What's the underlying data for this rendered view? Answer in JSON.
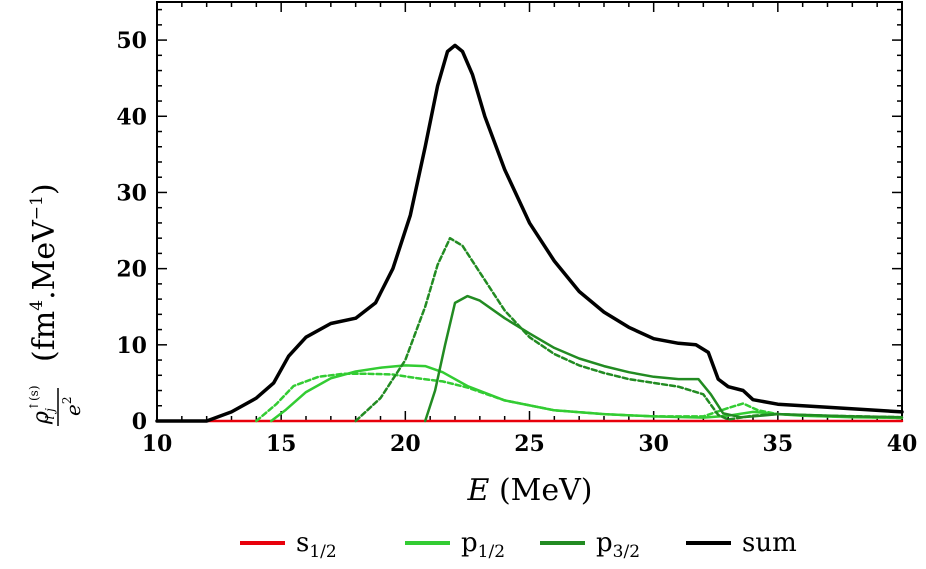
{
  "chart_data": {
    "type": "line",
    "xlabel_var": "E",
    "xlabel_unit": "(MeV)",
    "ylabel": {
      "symbol": "ρ",
      "superscript": "↑(s)",
      "subscript": "l j",
      "denominator": "e",
      "denominator_power": "2",
      "unit_open": "(fm",
      "unit_power": "4",
      "unit_mid": ".MeV",
      "unit_neg_power": "−1",
      "unit_close": ")"
    },
    "xlim": [
      10,
      40
    ],
    "ylim": [
      0,
      55
    ],
    "xticks": [
      "10",
      "15",
      "20",
      "25",
      "30",
      "35",
      "40"
    ],
    "yticks": [
      "0",
      "10",
      "20",
      "30",
      "40",
      "50"
    ],
    "legend_position": "bottom",
    "colors": {
      "s12": "#e8000b",
      "p12": "#33cc33",
      "p32": "#228b22",
      "sum": "#000000"
    },
    "legend": [
      {
        "key": "s12",
        "base": "s",
        "sub": "1/2"
      },
      {
        "key": "p12",
        "base": "p",
        "sub": "1/2"
      },
      {
        "key": "p32",
        "base": "p",
        "sub": "3/2"
      },
      {
        "key": "sum",
        "base": "sum",
        "sub": ""
      }
    ],
    "series": [
      {
        "key": "s12",
        "style": "solid",
        "x": [
          10,
          40
        ],
        "y": [
          0,
          0
        ]
      },
      {
        "key": "p12",
        "style": "solid",
        "x": [
          14.6,
          15.2,
          16,
          17,
          18,
          19,
          20,
          20.8,
          21.5,
          22.5,
          24,
          26,
          28,
          30,
          32,
          33,
          34,
          35,
          36,
          38,
          40
        ],
        "y": [
          0,
          1.5,
          3.8,
          5.6,
          6.5,
          7.0,
          7.3,
          7.2,
          6.4,
          4.6,
          2.7,
          1.4,
          0.9,
          0.6,
          0.45,
          0.7,
          1.2,
          0.9,
          0.7,
          0.5,
          0.4
        ]
      },
      {
        "key": "p12",
        "style": "dashed",
        "x": [
          14.0,
          14.8,
          15.5,
          16.5,
          17.5,
          18.5,
          19.5,
          20.5,
          21.5,
          22.5,
          24,
          26,
          28,
          30,
          32,
          33,
          33.6,
          34.2,
          35,
          37,
          40
        ],
        "y": [
          0,
          2.2,
          4.6,
          5.8,
          6.2,
          6.2,
          6.1,
          5.6,
          5.2,
          4.4,
          2.7,
          1.4,
          0.9,
          0.6,
          0.6,
          1.7,
          2.3,
          1.4,
          0.9,
          0.6,
          0.4
        ]
      },
      {
        "key": "p32",
        "style": "solid",
        "x": [
          20.8,
          21.2,
          21.6,
          22.0,
          22.5,
          23,
          24,
          25,
          26,
          27,
          28,
          29,
          30,
          31,
          31.8,
          32.3,
          32.8,
          33.5,
          34,
          35,
          36,
          38,
          40
        ],
        "y": [
          0,
          4,
          10,
          15.5,
          16.4,
          15.8,
          13.5,
          11.5,
          9.6,
          8.2,
          7.2,
          6.4,
          5.8,
          5.5,
          5.5,
          3.5,
          1.0,
          0.5,
          0.6,
          0.9,
          0.8,
          0.6,
          0.5
        ]
      },
      {
        "key": "p32",
        "style": "dashed",
        "x": [
          18.0,
          19,
          20,
          20.8,
          21.3,
          21.8,
          22.3,
          23,
          24,
          25,
          26,
          27,
          28,
          29,
          30,
          31,
          32,
          32.6,
          33,
          34,
          35,
          37,
          40
        ],
        "y": [
          0,
          3,
          8,
          15,
          20.5,
          24,
          23,
          19.5,
          14.5,
          11.0,
          8.8,
          7.3,
          6.3,
          5.5,
          5.0,
          4.5,
          3.5,
          0.8,
          0.2,
          0.7,
          0.9,
          0.7,
          0.5
        ]
      },
      {
        "key": "sum",
        "style": "solid",
        "x": [
          10,
          12,
          13,
          14,
          14.7,
          15.3,
          16,
          17,
          18,
          18.8,
          19.5,
          20.2,
          20.8,
          21.3,
          21.7,
          22.0,
          22.3,
          22.7,
          23.2,
          24,
          25,
          26,
          27,
          28,
          29,
          30,
          31,
          31.7,
          32.2,
          32.6,
          33,
          33.6,
          34,
          35,
          37,
          40
        ],
        "y": [
          0,
          0,
          1.2,
          3.0,
          5.0,
          8.5,
          11.0,
          12.8,
          13.5,
          15.5,
          20,
          27,
          36,
          44,
          48.5,
          49.3,
          48.5,
          45.5,
          40,
          33,
          26,
          21,
          17,
          14.3,
          12.3,
          10.8,
          10.2,
          10.0,
          9.0,
          5.5,
          4.5,
          4.0,
          2.8,
          2.2,
          1.8,
          1.2
        ]
      }
    ]
  }
}
